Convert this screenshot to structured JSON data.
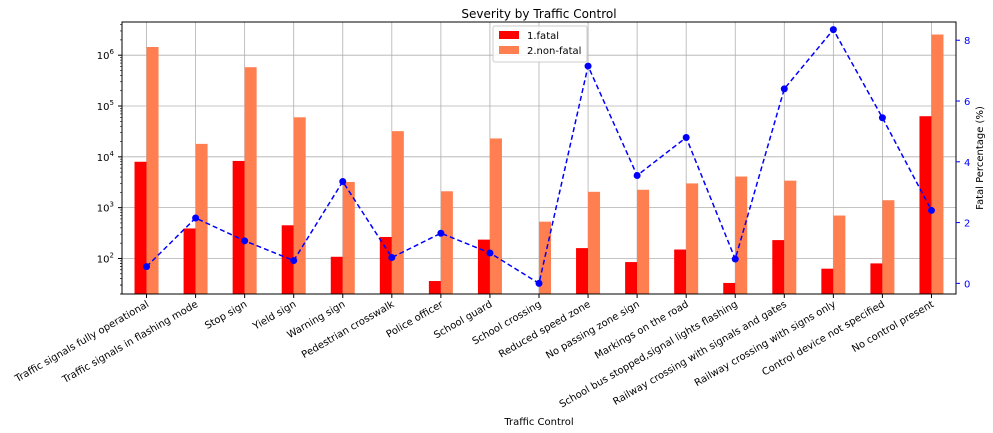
{
  "chart_data": {
    "type": "bar",
    "title": "Severity by Traffic Control",
    "xlabel": "Traffic Control",
    "ylabel": "",
    "y2label": "Fatal Percentage (%)",
    "yscale": "log",
    "ylim": [
      20,
      4500000
    ],
    "y2lim": [
      -0.35,
      8.6
    ],
    "grid": true,
    "legend_position": "top-center",
    "colors": {
      "fatal": "#ff0000",
      "nonfatal": "#ff7f50",
      "pct": "#0000ff"
    },
    "y_ticks": [
      {
        "value": 100,
        "base": "10",
        "exp": "2"
      },
      {
        "value": 1000,
        "base": "10",
        "exp": "3"
      },
      {
        "value": 10000,
        "base": "10",
        "exp": "4"
      },
      {
        "value": 100000,
        "base": "10",
        "exp": "5"
      },
      {
        "value": 1000000,
        "base": "10",
        "exp": "6"
      }
    ],
    "y2_ticks": [
      "0",
      "2",
      "4",
      "6",
      "8"
    ],
    "categories": [
      "Traffic signals fully operational",
      "Traffic signals in flashing mode",
      "Stop sign",
      "Yield sign",
      "Warning sign",
      "Pedestrian crosswalk",
      "Police officer",
      "School guard",
      "School crossing",
      "Reduced speed zone",
      "No passing zone sign",
      "Markings on the road",
      "School bus stopped,signal lights flashing",
      "Railway crossing with signals and gates",
      "Railway crossing with signs only",
      "Control device not specified",
      "No control present"
    ],
    "series": [
      {
        "name": "1.fatal",
        "axis": "left",
        "values": [
          8000,
          390,
          8300,
          450,
          108,
          265,
          36,
          235,
          0,
          160,
          85,
          150,
          33,
          230,
          63,
          80,
          63000
        ]
      },
      {
        "name": "2.non-fatal",
        "axis": "left",
        "values": [
          1450000,
          18000,
          580000,
          60000,
          3200,
          32000,
          2100,
          23000,
          530,
          2050,
          2250,
          3000,
          4100,
          3400,
          700,
          1400,
          2550000
        ]
      },
      {
        "name": "Fatal Percentage",
        "axis": "right",
        "values": [
          0.55,
          2.15,
          1.4,
          0.75,
          3.35,
          0.85,
          1.65,
          1.0,
          0.0,
          7.15,
          3.55,
          4.8,
          0.8,
          6.4,
          8.35,
          5.45,
          2.4
        ]
      }
    ]
  }
}
